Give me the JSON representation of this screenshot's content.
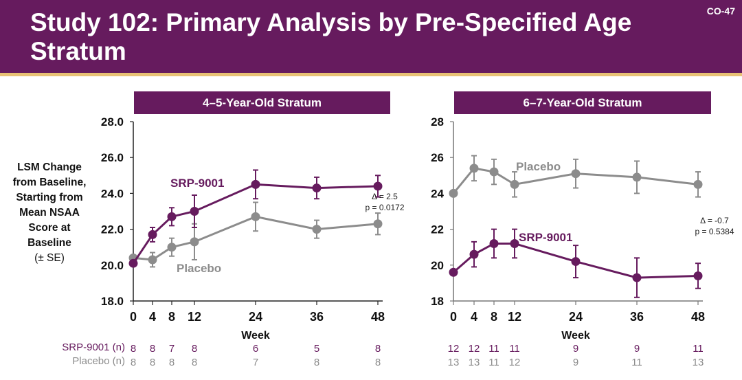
{
  "slide": {
    "title": "Study 102: Primary Analysis by Pre-Specified Age Stratum",
    "slide_id": "CO-47"
  },
  "colors": {
    "brand": "#661b5e",
    "accent_line": "#e8c275",
    "srp": "#661b5e",
    "placebo": "#8c8c8c"
  },
  "ylabel": {
    "main": "LSM Change from Baseline, Starting from Mean NSAA Score at Baseline",
    "sub": "(± SE)"
  },
  "n_labels": {
    "srp": "SRP-9001 (n)",
    "placebo": "Placebo (n)"
  },
  "chart_data": [
    {
      "type": "line",
      "title": "4–5-Year-Old Stratum",
      "xlabel": "Week",
      "ylabel": "LSM Change from Baseline, Starting from Mean NSAA Score at Baseline (± SE)",
      "x": [
        0,
        4,
        8,
        12,
        24,
        36,
        48
      ],
      "x_tick_labels": [
        "0",
        "4",
        "8",
        "12",
        "24",
        "36",
        "48"
      ],
      "ylim": [
        18.0,
        28.0
      ],
      "y_ticks": [
        "18.0",
        "20.0",
        "22.0",
        "24.0",
        "26.0",
        "28.0"
      ],
      "grid": false,
      "series": [
        {
          "name": "SRP-9001",
          "values": [
            20.1,
            21.7,
            22.7,
            23.0,
            24.5,
            24.3,
            24.4
          ],
          "se": [
            0.0,
            0.4,
            0.5,
            0.9,
            0.8,
            0.6,
            0.6
          ],
          "n": [
            "8",
            "8",
            "7",
            "8",
            "6",
            "5",
            "8"
          ]
        },
        {
          "name": "Placebo",
          "values": [
            20.4,
            20.3,
            21.0,
            21.3,
            22.7,
            22.0,
            22.3
          ],
          "se": [
            0.0,
            0.4,
            0.5,
            1.0,
            0.8,
            0.5,
            0.6
          ],
          "n": [
            "8",
            "8",
            "8",
            "8",
            "7",
            "8",
            "8"
          ]
        }
      ],
      "annotations": [
        "Δ = 2.5",
        "p = 0.0172"
      ],
      "series_labels": {
        "srp": "SRP-9001",
        "placebo": "Placebo"
      }
    },
    {
      "type": "line",
      "title": "6–7-Year-Old Stratum",
      "xlabel": "Week",
      "x": [
        0,
        4,
        8,
        12,
        24,
        36,
        48
      ],
      "x_tick_labels": [
        "0",
        "4",
        "8",
        "12",
        "24",
        "36",
        "48"
      ],
      "ylim": [
        18,
        28
      ],
      "y_ticks": [
        "18",
        "20",
        "22",
        "24",
        "26",
        "28"
      ],
      "grid": false,
      "series": [
        {
          "name": "SRP-9001",
          "values": [
            19.6,
            20.6,
            21.2,
            21.2,
            20.2,
            19.3,
            19.4
          ],
          "se": [
            0.0,
            0.7,
            0.8,
            0.8,
            0.9,
            1.1,
            0.7
          ],
          "n": [
            "12",
            "12",
            "11",
            "11",
            "9",
            "9",
            "11"
          ]
        },
        {
          "name": "Placebo",
          "values": [
            24.0,
            25.4,
            25.2,
            24.5,
            25.1,
            24.9,
            24.5
          ],
          "se": [
            0.0,
            0.7,
            0.7,
            0.7,
            0.8,
            0.9,
            0.7
          ],
          "n": [
            "13",
            "13",
            "11",
            "12",
            "9",
            "11",
            "13"
          ]
        }
      ],
      "annotations": [
        "Δ = -0.7",
        "p = 0.5384"
      ],
      "series_labels": {
        "srp": "SRP-9001",
        "placebo": "Placebo"
      }
    }
  ]
}
